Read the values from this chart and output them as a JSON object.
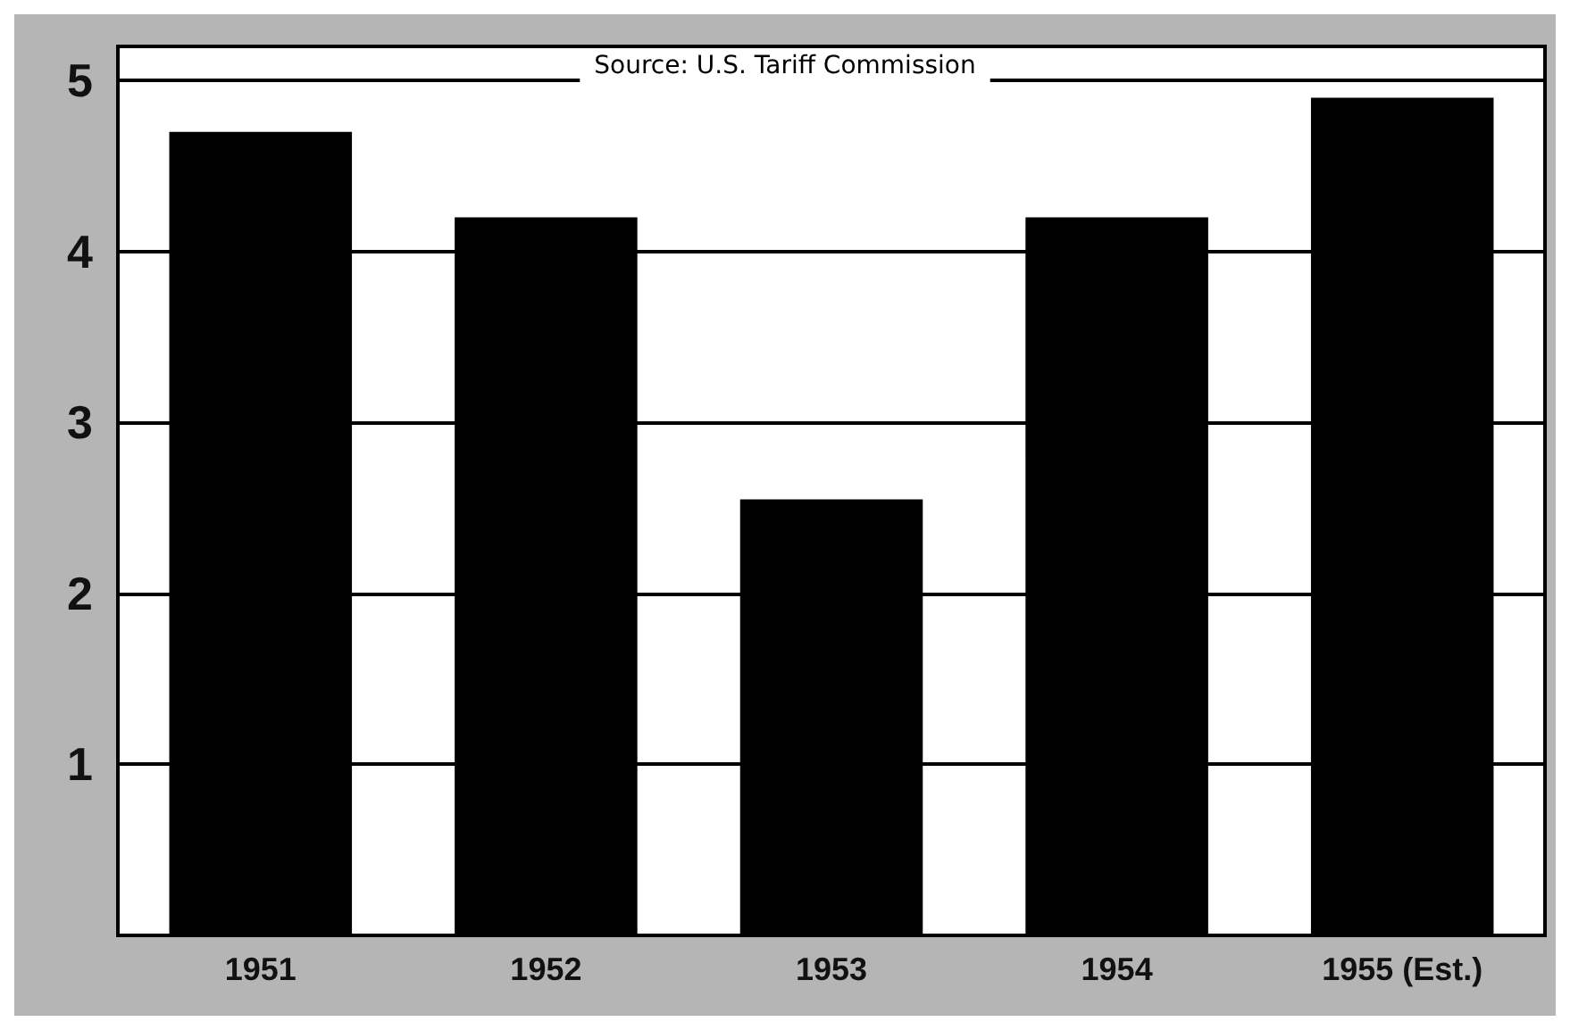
{
  "chart_data": {
    "type": "bar",
    "categories": [
      "1951",
      "1952",
      "1953",
      "1954",
      "1955 (Est.)"
    ],
    "values": [
      4.7,
      4.2,
      2.55,
      4.2,
      4.9
    ],
    "color": "#000000",
    "ylim": [
      0,
      5.2
    ],
    "yticks": [
      1,
      2,
      3,
      4,
      5
    ],
    "grid": "y",
    "annotations": [
      "Source: U.S. Tariff Commission"
    ]
  }
}
